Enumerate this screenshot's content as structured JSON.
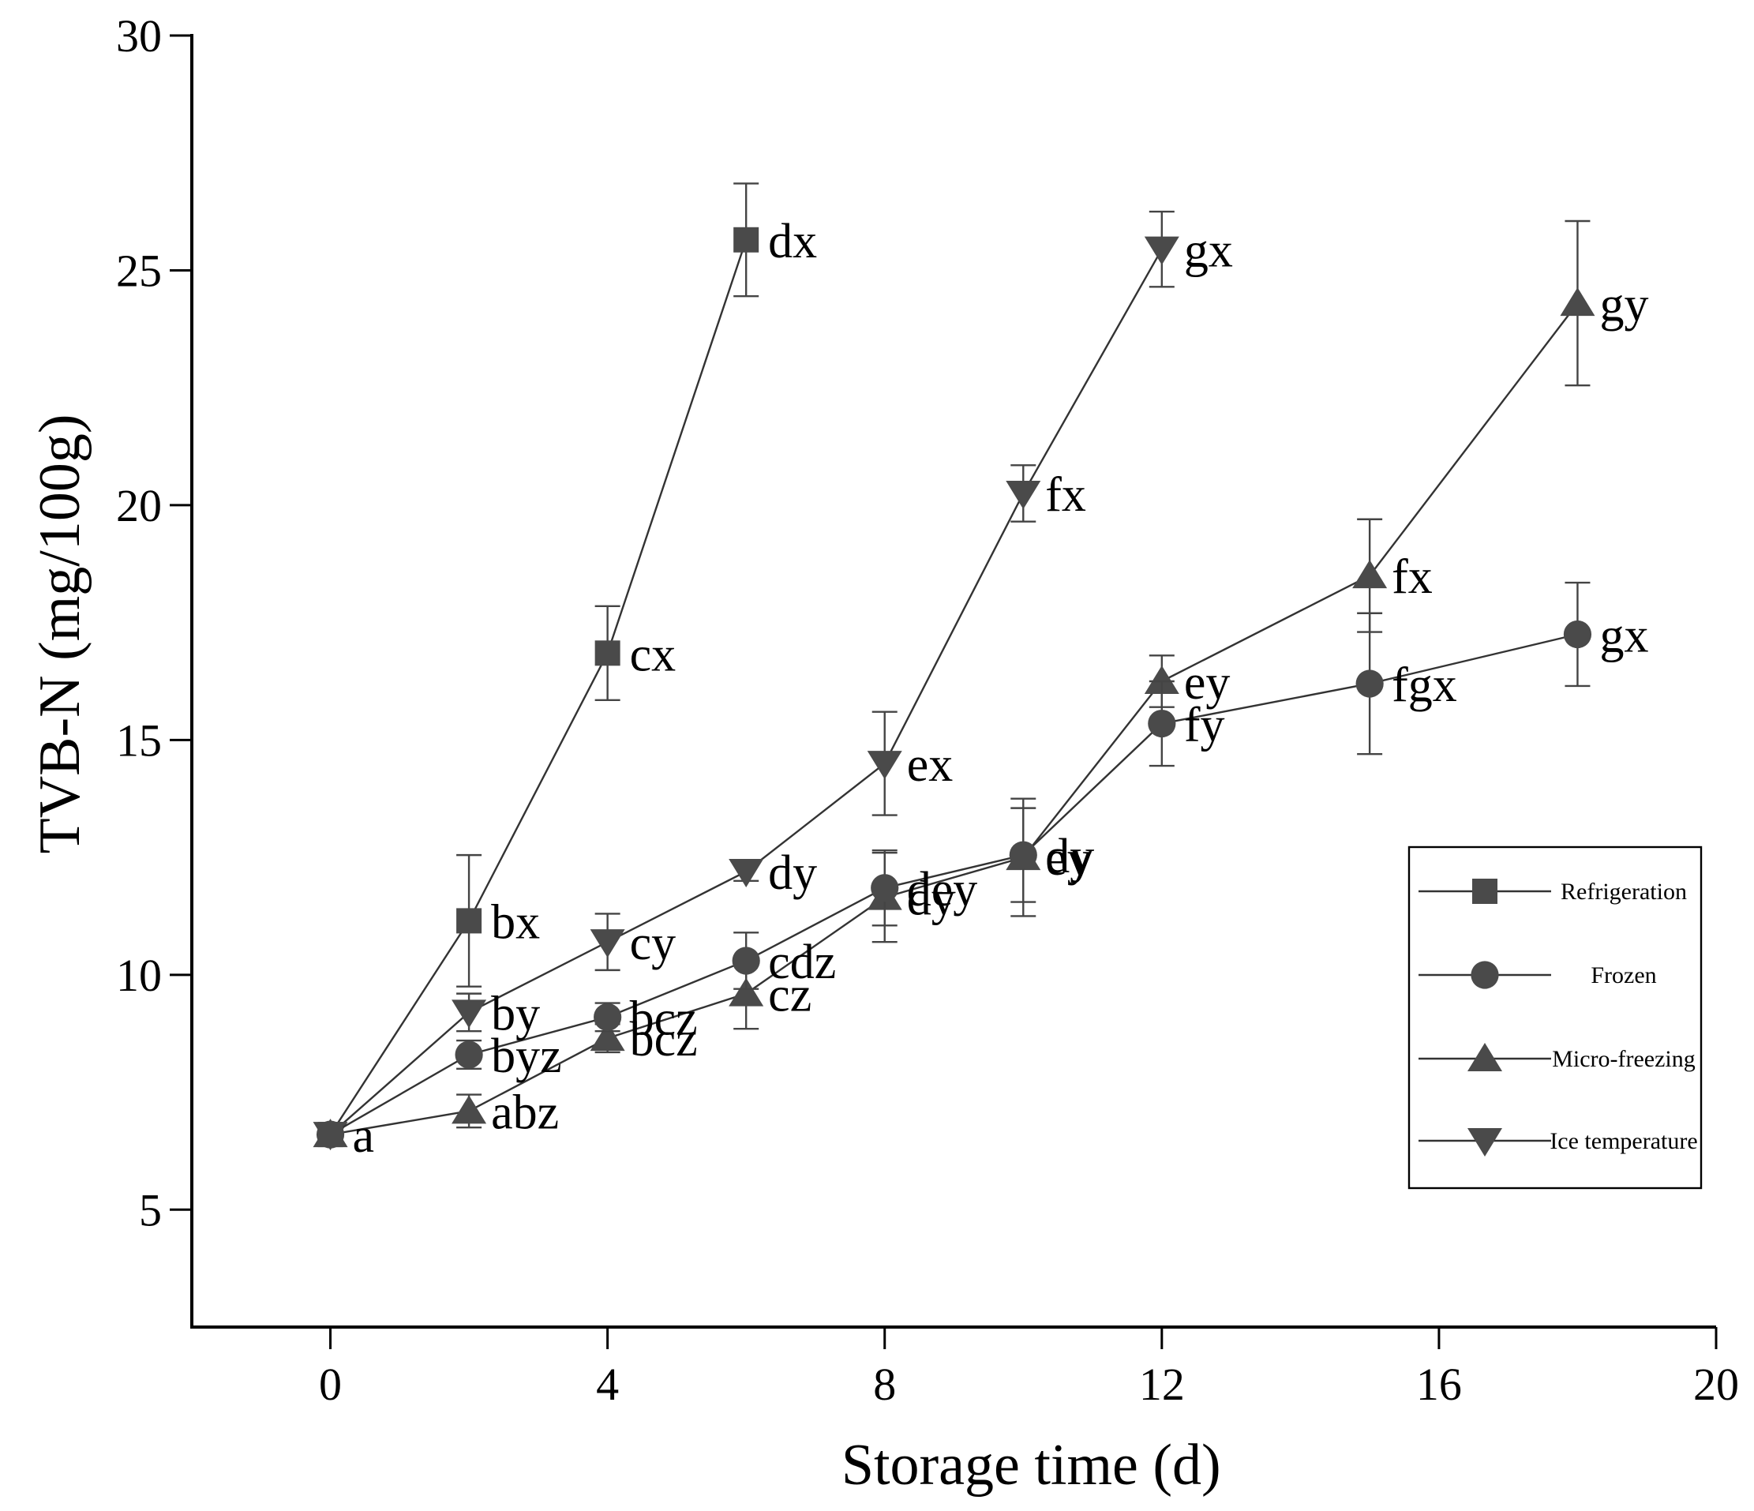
{
  "chart_data": {
    "type": "line",
    "title": "",
    "xlabel": "Storage time (d)",
    "ylabel": "TVB-N (mg/100g)",
    "xlim": [
      -2,
      20
    ],
    "ylim": [
      2.5,
      30
    ],
    "xticks": [
      0,
      4,
      8,
      12,
      16,
      20
    ],
    "yticks": [
      5,
      10,
      15,
      20,
      25,
      30
    ],
    "xtick_labels": [
      "0",
      "4",
      "8",
      "12",
      "16",
      "20"
    ],
    "ytick_labels": [
      "5",
      "10",
      "15",
      "20",
      "25",
      "30"
    ],
    "legend_position": "right",
    "series": [
      {
        "name": "Refrigeration",
        "marker": "square",
        "x": [
          0,
          2,
          4,
          6
        ],
        "y": [
          6.6,
          11.15,
          16.85,
          25.65
        ],
        "err": [
          0.2,
          1.4,
          1.0,
          1.2
        ],
        "labels": [
          "",
          "bx",
          "cx",
          "dx"
        ]
      },
      {
        "name": "Frozen",
        "marker": "circle",
        "x": [
          0,
          2,
          4,
          6,
          8,
          10,
          12,
          15,
          18
        ],
        "y": [
          6.6,
          8.3,
          9.1,
          10.3,
          11.85,
          12.55,
          15.35,
          16.2,
          17.25
        ],
        "err": [
          0.2,
          0.3,
          0.3,
          0.6,
          0.8,
          1.0,
          0.9,
          1.5,
          1.1
        ],
        "labels": [
          "",
          "byz",
          "bcz",
          "cdz",
          "dey",
          "dy",
          "fy",
          "fgx",
          "gx"
        ]
      },
      {
        "name": "Micro-freezing",
        "marker": "triangle-up",
        "x": [
          0,
          2,
          4,
          6,
          8,
          10,
          12,
          15,
          18
        ],
        "y": [
          6.6,
          7.1,
          8.65,
          9.6,
          11.65,
          12.5,
          16.25,
          18.5,
          24.3
        ],
        "err": [
          0.2,
          0.35,
          0.3,
          0.75,
          0.95,
          1.25,
          0.55,
          1.2,
          1.75
        ],
        "labels": [
          "",
          "abz",
          "bcz",
          "cz",
          "dy",
          "ey",
          "ey",
          "fx",
          "gy"
        ]
      },
      {
        "name": "Ice temperature",
        "marker": "triangle-down",
        "x": [
          0,
          2,
          4,
          6,
          8,
          10
        ],
        "y": [
          6.6,
          9.2,
          10.7,
          12.2,
          14.5,
          20.25
        ],
        "err": [
          0.2,
          0.4,
          0.6,
          0.2,
          1.1,
          0.6
        ],
        "labels": [
          "a",
          "by",
          "cy",
          "dy",
          "ex",
          "fx"
        ]
      }
    ],
    "extra_series_label": {
      "series": 3,
      "index": 5,
      "x": 12,
      "y": 25.45,
      "err": 0.8,
      "label": "gx"
    }
  }
}
